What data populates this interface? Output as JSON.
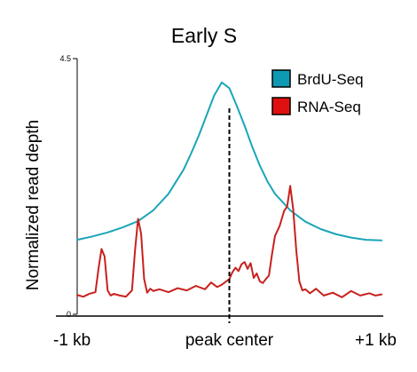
{
  "chart_data": {
    "type": "line",
    "title": "Early S",
    "xlabel": "",
    "ylabel": "Normalized read depth",
    "x_range": [
      -1,
      1
    ],
    "x_unit": "kb",
    "ylim": [
      0,
      4.5
    ],
    "y_ticks": [
      {
        "value": 0,
        "label": "0"
      },
      {
        "value": 4.5,
        "label": "4.5"
      }
    ],
    "x_ticks": [
      {
        "value": -1,
        "label": "-1 kb"
      },
      {
        "value": 0,
        "label": "peak center"
      },
      {
        "value": 1,
        "label": "+1 kb"
      }
    ],
    "grid": false,
    "legend_position": "top-right",
    "peak_center_line": {
      "x": 0,
      "style": "dashed"
    },
    "series": [
      {
        "name": "BrdU-Seq",
        "color": "#1aa5b8",
        "legend_color": "#0f9ab3",
        "x": [
          -1.0,
          -0.9,
          -0.8,
          -0.7,
          -0.6,
          -0.5,
          -0.4,
          -0.3,
          -0.25,
          -0.2,
          -0.15,
          -0.1,
          -0.05,
          0.0,
          0.05,
          0.1,
          0.15,
          0.2,
          0.25,
          0.3,
          0.4,
          0.5,
          0.6,
          0.7,
          0.8,
          0.9,
          1.0
        ],
        "y": [
          1.31,
          1.37,
          1.44,
          1.53,
          1.64,
          1.83,
          2.12,
          2.55,
          2.84,
          3.15,
          3.5,
          3.85,
          4.08,
          3.98,
          3.66,
          3.32,
          2.95,
          2.62,
          2.34,
          2.12,
          1.83,
          1.63,
          1.5,
          1.41,
          1.35,
          1.31,
          1.3
        ]
      },
      {
        "name": "RNA-Seq",
        "color": "#c8211e",
        "legend_color": "#e01010",
        "x": [
          -1.0,
          -0.96,
          -0.92,
          -0.88,
          -0.86,
          -0.84,
          -0.82,
          -0.8,
          -0.78,
          -0.76,
          -0.72,
          -0.68,
          -0.64,
          -0.62,
          -0.6,
          -0.58,
          -0.56,
          -0.54,
          -0.52,
          -0.5,
          -0.46,
          -0.4,
          -0.34,
          -0.28,
          -0.22,
          -0.16,
          -0.12,
          -0.08,
          -0.05,
          -0.02,
          0.0,
          0.02,
          0.04,
          0.06,
          0.08,
          0.1,
          0.12,
          0.14,
          0.16,
          0.18,
          0.2,
          0.22,
          0.24,
          0.26,
          0.28,
          0.3,
          0.33,
          0.36,
          0.38,
          0.4,
          0.42,
          0.44,
          0.46,
          0.48,
          0.5,
          0.53,
          0.57,
          0.62,
          0.68,
          0.74,
          0.8,
          0.86,
          0.92,
          0.96,
          1.0
        ],
        "y": [
          0.34,
          0.31,
          0.36,
          0.39,
          0.8,
          1.15,
          1.02,
          0.42,
          0.33,
          0.36,
          0.33,
          0.31,
          0.42,
          1.12,
          1.68,
          1.42,
          0.62,
          0.38,
          0.45,
          0.41,
          0.44,
          0.39,
          0.46,
          0.42,
          0.5,
          0.44,
          0.56,
          0.48,
          0.52,
          0.58,
          0.62,
          0.74,
          0.82,
          0.76,
          0.88,
          0.92,
          0.8,
          0.9,
          0.64,
          0.72,
          0.58,
          0.55,
          0.62,
          0.68,
          1.05,
          1.38,
          1.55,
          1.82,
          1.9,
          2.26,
          1.84,
          1.12,
          0.58,
          0.42,
          0.44,
          0.37,
          0.45,
          0.33,
          0.38,
          0.3,
          0.41,
          0.33,
          0.37,
          0.33,
          0.35
        ]
      }
    ]
  }
}
